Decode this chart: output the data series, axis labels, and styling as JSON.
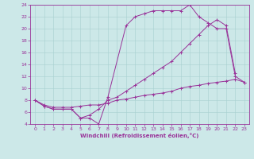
{
  "line1_x": [
    0,
    1,
    2,
    3,
    4,
    5,
    6,
    7,
    8,
    10,
    11,
    12,
    13,
    14,
    15,
    16,
    17,
    18,
    19,
    20,
    21,
    22,
    23
  ],
  "line1_y": [
    8.0,
    7.0,
    6.5,
    6.5,
    6.5,
    5.0,
    5.0,
    4.0,
    8.5,
    20.5,
    22.0,
    22.5,
    23.0,
    23.0,
    23.0,
    23.0,
    24.0,
    22.0,
    21.0,
    20.0,
    20.0,
    12.0,
    11.0
  ],
  "line2_x": [
    0,
    1,
    2,
    3,
    4,
    5,
    6,
    7,
    8,
    9,
    10,
    11,
    12,
    13,
    14,
    15,
    16,
    17,
    18,
    19,
    20,
    21,
    22,
    23
  ],
  "line2_y": [
    8.0,
    7.2,
    6.8,
    6.8,
    6.8,
    7.0,
    7.2,
    7.2,
    7.5,
    8.0,
    8.2,
    8.5,
    8.8,
    9.0,
    9.2,
    9.5,
    10.0,
    10.3,
    10.5,
    10.8,
    11.0,
    11.2,
    11.5,
    11.0
  ],
  "line3_x": [
    0,
    1,
    2,
    3,
    4,
    5,
    6,
    7,
    8,
    9,
    10,
    11,
    12,
    13,
    14,
    15,
    16,
    17,
    18,
    19,
    20,
    21,
    22,
    23
  ],
  "line3_y": [
    8.0,
    7.0,
    6.5,
    6.5,
    6.5,
    5.0,
    5.5,
    6.5,
    8.0,
    8.5,
    9.5,
    10.5,
    11.5,
    12.5,
    13.5,
    14.5,
    16.0,
    17.5,
    19.0,
    20.5,
    21.5,
    20.5,
    12.5,
    11.0
  ],
  "color": "#993399",
  "bg_color": "#cce8e8",
  "xlabel": "Windchill (Refroidissement éolien,°C)",
  "ylim": [
    4,
    24
  ],
  "xlim": [
    -0.5,
    23.5
  ],
  "yticks": [
    4,
    6,
    8,
    10,
    12,
    14,
    16,
    18,
    20,
    22,
    24
  ],
  "xticks": [
    0,
    1,
    2,
    3,
    4,
    5,
    6,
    7,
    8,
    9,
    10,
    11,
    12,
    13,
    14,
    15,
    16,
    17,
    18,
    19,
    20,
    21,
    22,
    23
  ]
}
